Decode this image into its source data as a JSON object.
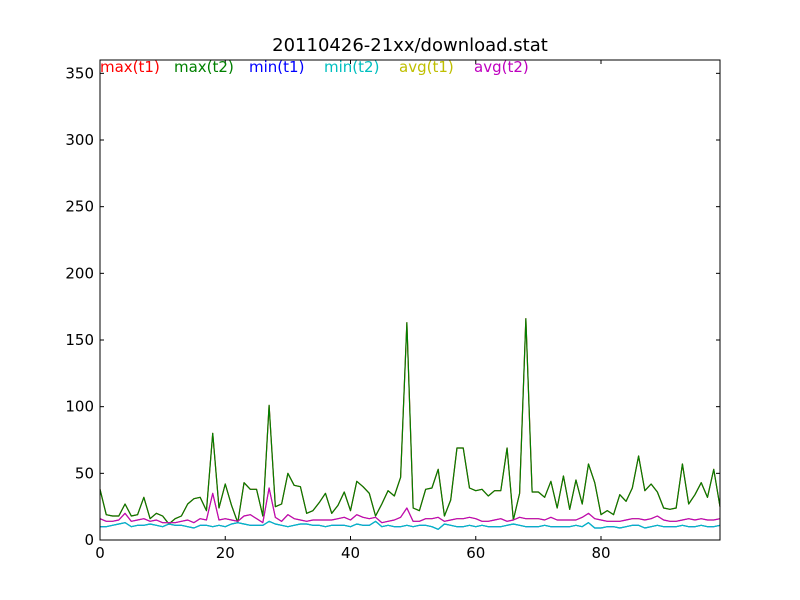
{
  "chart_data": {
    "type": "line",
    "title": "20110426-21xx/download.stat",
    "xlabel": "",
    "ylabel": "",
    "xlim": [
      0,
      99
    ],
    "ylim": [
      0,
      360
    ],
    "x_ticks": [
      0,
      20,
      40,
      60,
      80
    ],
    "y_ticks": [
      0,
      50,
      100,
      150,
      200,
      250,
      300,
      350
    ],
    "grid": false,
    "legend_placement": "top-left, inside plot, horizontal row",
    "series": [
      {
        "name": "max(t1)",
        "color": "#ff0000",
        "values": [
          38,
          19,
          18,
          18,
          27,
          18,
          19,
          32,
          16,
          20,
          18,
          12,
          16,
          18,
          27,
          31,
          32,
          22,
          80,
          24,
          42,
          26,
          13,
          43,
          38,
          38,
          18,
          101,
          25,
          27,
          50,
          41,
          40,
          20,
          22,
          28,
          35,
          20,
          26,
          36,
          22,
          44,
          40,
          35,
          18,
          27,
          37,
          33,
          47,
          163,
          24,
          22,
          38,
          39,
          53,
          18,
          30,
          69,
          69,
          39,
          37,
          38,
          33,
          37,
          37,
          69,
          15,
          35,
          166,
          36,
          36,
          32,
          44,
          24,
          48,
          23,
          45,
          27,
          57,
          43,
          19,
          22,
          19,
          34,
          29,
          39,
          63,
          37,
          42,
          36,
          24,
          23,
          24,
          57,
          27,
          34,
          43,
          32,
          53,
          25
        ]
      },
      {
        "name": "max(t2)",
        "color": "#008000",
        "values": [
          38,
          19,
          18,
          18,
          27,
          18,
          19,
          32,
          16,
          20,
          18,
          12,
          16,
          18,
          27,
          31,
          32,
          22,
          80,
          24,
          42,
          26,
          13,
          43,
          38,
          38,
          18,
          101,
          25,
          27,
          50,
          41,
          40,
          20,
          22,
          28,
          35,
          20,
          26,
          36,
          22,
          44,
          40,
          35,
          18,
          27,
          37,
          33,
          47,
          163,
          24,
          22,
          38,
          39,
          53,
          18,
          30,
          69,
          69,
          39,
          37,
          38,
          33,
          37,
          37,
          69,
          15,
          35,
          166,
          36,
          36,
          32,
          44,
          24,
          48,
          23,
          45,
          27,
          57,
          43,
          19,
          22,
          19,
          34,
          29,
          39,
          63,
          37,
          42,
          36,
          24,
          23,
          24,
          57,
          27,
          34,
          43,
          32,
          53,
          25
        ]
      },
      {
        "name": "min(t1)",
        "color": "#0000ff",
        "values": [
          10,
          10,
          11,
          12,
          13,
          10,
          11,
          11,
          12,
          11,
          10,
          12,
          11,
          11,
          10,
          9,
          11,
          11,
          10,
          11,
          10,
          12,
          13,
          12,
          11,
          11,
          11,
          14,
          12,
          11,
          10,
          11,
          12,
          12,
          11,
          11,
          10,
          11,
          11,
          11,
          10,
          12,
          11,
          11,
          14,
          10,
          11,
          10,
          10,
          11,
          10,
          11,
          11,
          10,
          8,
          12,
          11,
          10,
          10,
          11,
          10,
          11,
          10,
          10,
          10,
          11,
          12,
          11,
          10,
          10,
          10,
          11,
          10,
          10,
          10,
          10,
          11,
          10,
          13,
          9,
          9,
          10,
          10,
          9,
          10,
          11,
          11,
          9,
          10,
          11,
          10,
          10,
          10,
          11,
          10,
          10,
          11,
          10,
          10,
          11
        ]
      },
      {
        "name": "min(t2)",
        "color": "#00bfbf",
        "values": [
          10,
          10,
          11,
          12,
          13,
          10,
          11,
          11,
          12,
          11,
          10,
          12,
          11,
          11,
          10,
          9,
          11,
          11,
          10,
          11,
          10,
          12,
          13,
          12,
          11,
          11,
          11,
          14,
          12,
          11,
          10,
          11,
          12,
          12,
          11,
          11,
          10,
          11,
          11,
          11,
          10,
          12,
          11,
          11,
          14,
          10,
          11,
          10,
          10,
          11,
          10,
          11,
          11,
          10,
          8,
          12,
          11,
          10,
          10,
          11,
          10,
          11,
          10,
          10,
          10,
          11,
          12,
          11,
          10,
          10,
          10,
          11,
          10,
          10,
          10,
          10,
          11,
          10,
          13,
          9,
          9,
          10,
          10,
          9,
          10,
          11,
          11,
          9,
          10,
          11,
          10,
          10,
          10,
          11,
          10,
          10,
          11,
          10,
          10,
          11
        ]
      },
      {
        "name": "avg(t1)",
        "color": "#bfbf00",
        "values": [
          16,
          14,
          14,
          15,
          20,
          14,
          15,
          16,
          14,
          15,
          13,
          13,
          13,
          14,
          15,
          13,
          16,
          15,
          35,
          15,
          16,
          15,
          14,
          18,
          19,
          16,
          13,
          39,
          17,
          14,
          19,
          16,
          15,
          14,
          15,
          15,
          15,
          15,
          16,
          17,
          15,
          19,
          17,
          16,
          17,
          13,
          14,
          15,
          17,
          24,
          14,
          14,
          16,
          16,
          17,
          14,
          15,
          16,
          16,
          17,
          16,
          14,
          14,
          15,
          16,
          14,
          15,
          17,
          16,
          16,
          16,
          15,
          17,
          15,
          15,
          15,
          15,
          17,
          20,
          16,
          15,
          14,
          14,
          14,
          15,
          16,
          16,
          15,
          16,
          18,
          15,
          14,
          14,
          15,
          16,
          15,
          16,
          15,
          15,
          16
        ]
      },
      {
        "name": "avg(t2)",
        "color": "#bf00bf",
        "values": [
          16,
          14,
          14,
          15,
          20,
          14,
          15,
          16,
          14,
          15,
          13,
          13,
          13,
          14,
          15,
          13,
          16,
          15,
          35,
          15,
          16,
          15,
          14,
          18,
          19,
          16,
          13,
          39,
          17,
          14,
          19,
          16,
          15,
          14,
          15,
          15,
          15,
          15,
          16,
          17,
          15,
          19,
          17,
          16,
          17,
          13,
          14,
          15,
          17,
          24,
          14,
          14,
          16,
          16,
          17,
          14,
          15,
          16,
          16,
          17,
          16,
          14,
          14,
          15,
          16,
          14,
          15,
          17,
          16,
          16,
          16,
          15,
          17,
          15,
          15,
          15,
          15,
          17,
          20,
          16,
          15,
          14,
          14,
          14,
          15,
          16,
          16,
          15,
          16,
          18,
          15,
          14,
          14,
          15,
          16,
          15,
          16,
          15,
          15,
          16
        ]
      }
    ]
  }
}
